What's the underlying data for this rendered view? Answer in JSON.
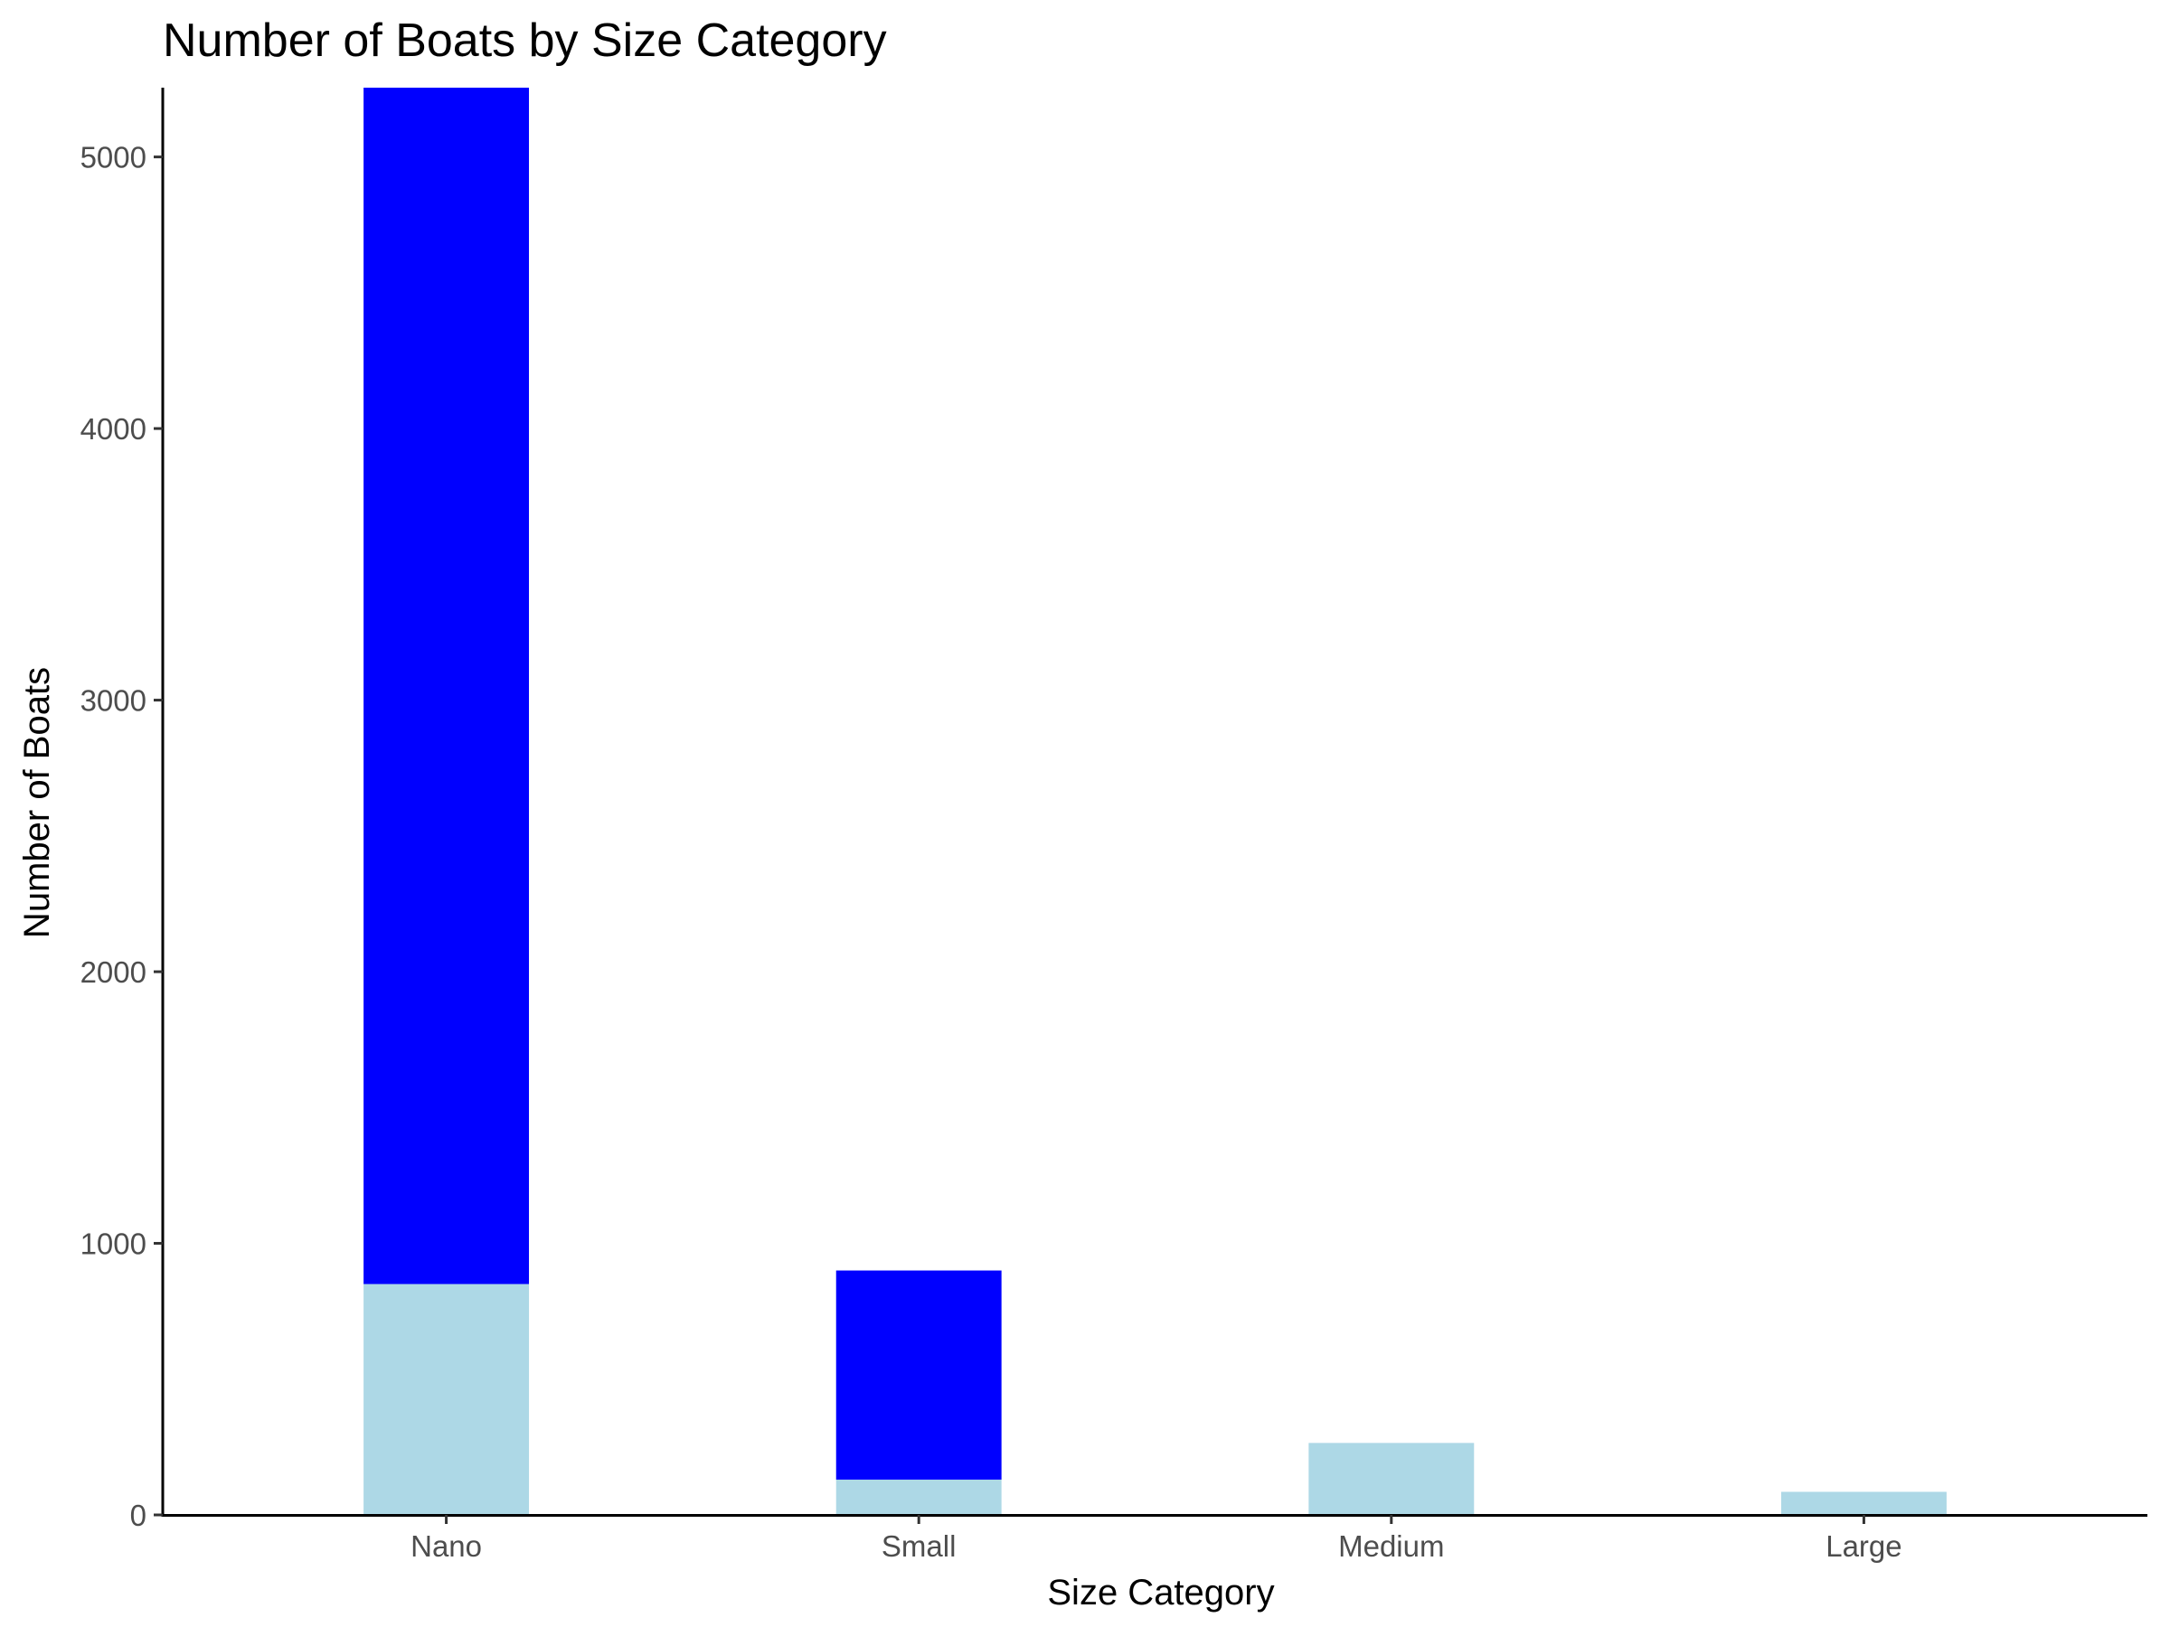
{
  "chart_data": {
    "type": "bar",
    "stacked": true,
    "title": "Number of Boats by Size Category",
    "xlabel": "Size Category",
    "ylabel": "Number of Boats",
    "categories": [
      "Nano",
      "Small",
      "Medium",
      "Large"
    ],
    "series": [
      {
        "color": "#ADD8E6",
        "values": [
          850,
          130,
          265,
          85
        ]
      },
      {
        "color": "#0000FF",
        "values": [
          4405,
          770,
          0,
          0
        ]
      }
    ],
    "ylim": [
      0,
      5255
    ],
    "yticks": [
      0,
      1000,
      2000,
      3000,
      4000,
      5000
    ],
    "grid": false,
    "legend": "none"
  }
}
